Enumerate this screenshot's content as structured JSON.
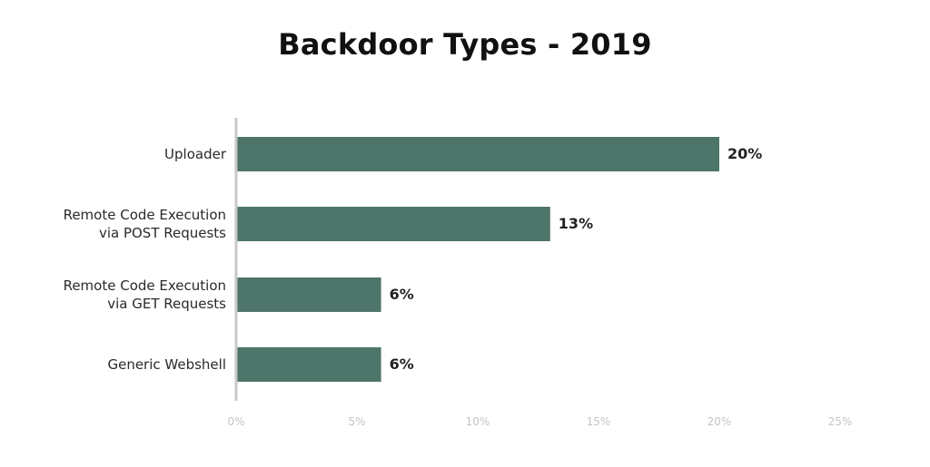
{
  "chart_data": {
    "type": "bar",
    "orientation": "horizontal",
    "title": "Backdoor Types - 2019",
    "xlabel": "",
    "ylabel": "",
    "categories": [
      [
        "Uploader"
      ],
      [
        "Remote Code Execution",
        "via POST Requests"
      ],
      [
        "Remote Code Execution",
        "via GET Requests"
      ],
      [
        "Generic Webshell"
      ]
    ],
    "values": [
      20,
      13,
      6,
      6
    ],
    "value_labels": [
      "20%",
      "13%",
      "6%",
      "6%"
    ],
    "xlim": [
      0,
      25
    ],
    "x_ticks": [
      0,
      5,
      10,
      15,
      20,
      25
    ],
    "x_tick_labels": [
      "0%",
      "5%",
      "10%",
      "15%",
      "20%",
      "25%"
    ],
    "grid": false,
    "legend": "none",
    "colors": {
      "bar": "#4d756a",
      "axis": "#c8c8c8"
    }
  }
}
